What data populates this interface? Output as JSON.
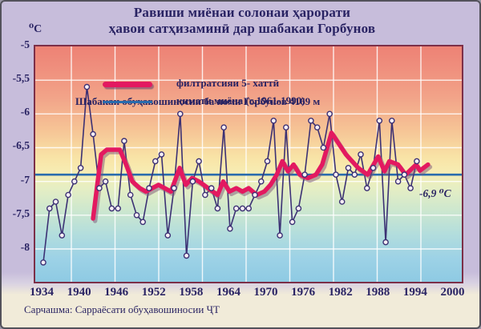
{
  "title": {
    "line1": "Равиши миёнаи солонаи ҳарорати",
    "line2": "ҳавои сатҳизаминӣ дар  шабакаи Горбунов"
  },
  "unit_label": "⁰C",
  "legend": {
    "station": "Шабакаи обуҳавошиносии ба номи Горбунов 4169 м",
    "filtered_label": "филтратсияи 5- хаттӣ",
    "mean_label": "қимати миёна  (с.1961-1990)"
  },
  "annotation": "-6,9 ⁰C",
  "footer": {
    "source": "Сарчашма: Сарраёсати обуҳавошиносии ҶТ"
  },
  "colors": {
    "accent_red": "#e31960",
    "red_shadow": "#7a5578",
    "mean_blue": "#2a6cad",
    "series_navy": "#3c3174",
    "marker_fill": "#f7eef4",
    "text_navy": "#292363",
    "plot_border": "#7c2f48",
    "grid_white": "rgba(255,255,255,0.85)",
    "background_lavender": "#c7bddb",
    "background_cream": "#f1ebd9",
    "plot_gradient_top": "#ed8275",
    "plot_gradient_bottom": "#8ecae3"
  },
  "chart_data": {
    "type": "line",
    "title": "Равиши миёнаи солонаи ҳарорати ҳавои сатҳизаминӣ дар шабакаи Горбунов",
    "station": "Шабакаи обуҳавошиносии ба номи Горбунов 4169 м",
    "ylabel": "⁰C",
    "grid": true,
    "legend_position": "top-left-inside",
    "xlim": [
      1932.7,
      2001.2
    ],
    "ylim": [
      -8.5,
      -5
    ],
    "xticks": [
      1934,
      1940,
      1946,
      1952,
      1958,
      1964,
      1970,
      1976,
      1982,
      1988,
      1994,
      2000
    ],
    "ytick_values": [
      -5,
      -5.5,
      -6,
      -6.5,
      -7,
      -7.5,
      -8
    ],
    "ytick_labels": [
      "-5",
      "-5,5",
      "-6",
      "-6,5",
      "-7",
      "-7,5",
      "-8"
    ],
    "series": [
      {
        "name": "annual-mean-temperature",
        "style": "thin-navy-line-with-markers",
        "x_start": 1934,
        "x_step": 1,
        "values": [
          -8.2,
          -7.4,
          -7.3,
          -7.8,
          -7.2,
          -7.0,
          -6.8,
          -5.6,
          -6.3,
          -7.1,
          -7.0,
          -7.4,
          -7.4,
          -6.4,
          -7.2,
          -7.5,
          -7.6,
          -7.1,
          -6.7,
          -6.6,
          -7.8,
          -7.1,
          -6.0,
          -8.1,
          -7.0,
          -6.7,
          -7.2,
          -7.1,
          -7.4,
          -6.2,
          -7.7,
          -7.4,
          -7.4,
          -7.4,
          -7.2,
          -7.0,
          -6.7,
          -6.1,
          -7.8,
          -6.2,
          -7.6,
          -7.4,
          -6.9,
          -6.1,
          -6.2,
          -6.5,
          -6.0,
          -6.9,
          -7.3,
          -6.8,
          -6.9,
          -6.6,
          -7.1,
          -6.8,
          -6.1,
          -7.9,
          -6.1,
          -7.0,
          -6.9,
          -7.1,
          -6.7
        ]
      }
    ],
    "filtered_series": {
      "name": "филтратсияи 5- хаттӣ",
      "style": "thick-crimson-line",
      "x": [
        1942.0,
        1942.6,
        1943.3,
        1944.2,
        1946.3,
        1947.3,
        1948.3,
        1949.5,
        1950.5,
        1951.5,
        1952.5,
        1953.5,
        1954.5,
        1955.9,
        1956.9,
        1957.9,
        1959.0,
        1960.5,
        1962.0,
        1962.9,
        1963.9,
        1965.0,
        1966.0,
        1967.0,
        1968.3,
        1969.5,
        1970.5,
        1971.5,
        1972.4,
        1973.3,
        1974.2,
        1975.2,
        1976.5,
        1977.8,
        1978.8,
        1980.3,
        1982.6,
        1984.6,
        1986.1,
        1987.8,
        1988.8,
        1989.6,
        1991.0,
        1992.2,
        1993.9,
        1994.5,
        1995.8
      ],
      "y": [
        -7.55,
        -7.1,
        -6.6,
        -6.53,
        -6.53,
        -6.75,
        -7.0,
        -7.1,
        -7.15,
        -7.1,
        -7.05,
        -7.1,
        -7.15,
        -6.8,
        -7.05,
        -6.95,
        -7.0,
        -7.1,
        -7.2,
        -7.0,
        -7.15,
        -7.1,
        -7.15,
        -7.1,
        -7.2,
        -7.15,
        -7.05,
        -6.9,
        -6.7,
        -6.85,
        -6.75,
        -6.9,
        -6.95,
        -6.9,
        -6.75,
        -6.28,
        -6.6,
        -6.8,
        -6.9,
        -6.63,
        -6.85,
        -6.7,
        -6.75,
        -6.9,
        -6.75,
        -6.84,
        -6.75
      ]
    },
    "mean_line": {
      "label": "қимати миёна  (с.1961-1990)",
      "value": -6.9,
      "annotation": "-6,9 ⁰C"
    }
  }
}
